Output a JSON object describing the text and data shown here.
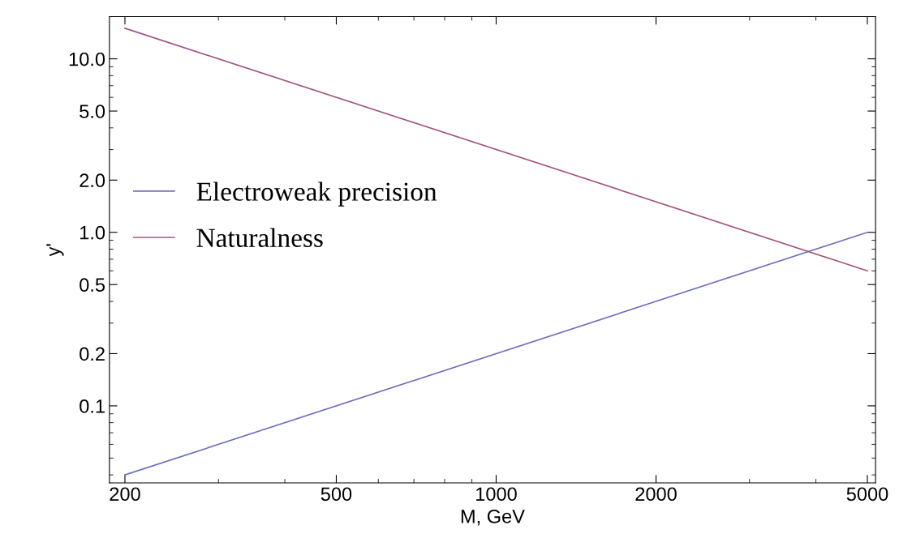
{
  "chart_data": {
    "type": "line",
    "xlabel": "M, GeV",
    "ylabel": "y'",
    "log": "xy",
    "x": [
      200,
      5000
    ],
    "series": [
      {
        "name": "Electroweak precision",
        "color": "#6f6fc0",
        "values": [
          0.04,
          1.0
        ]
      },
      {
        "name": "Naturalness",
        "color": "#a3547e",
        "values": [
          15,
          0.6
        ]
      }
    ],
    "xlim": [
      187,
      5180
    ],
    "ylim": [
      0.036,
      17.5
    ],
    "xticks": [
      200,
      500,
      1000,
      2000,
      5000
    ],
    "yticks": [
      {
        "value": 0.1,
        "label": "0.1"
      },
      {
        "value": 0.2,
        "label": "0.2"
      },
      {
        "value": 0.5,
        "label": "0.5"
      },
      {
        "value": 1,
        "label": "1.0"
      },
      {
        "value": 2,
        "label": "2.0"
      },
      {
        "value": 5,
        "label": "5.0"
      },
      {
        "value": 10,
        "label": "10.0"
      }
    ],
    "legend": "center left",
    "grid": false,
    "marker": "none",
    "line_style": "solid"
  }
}
